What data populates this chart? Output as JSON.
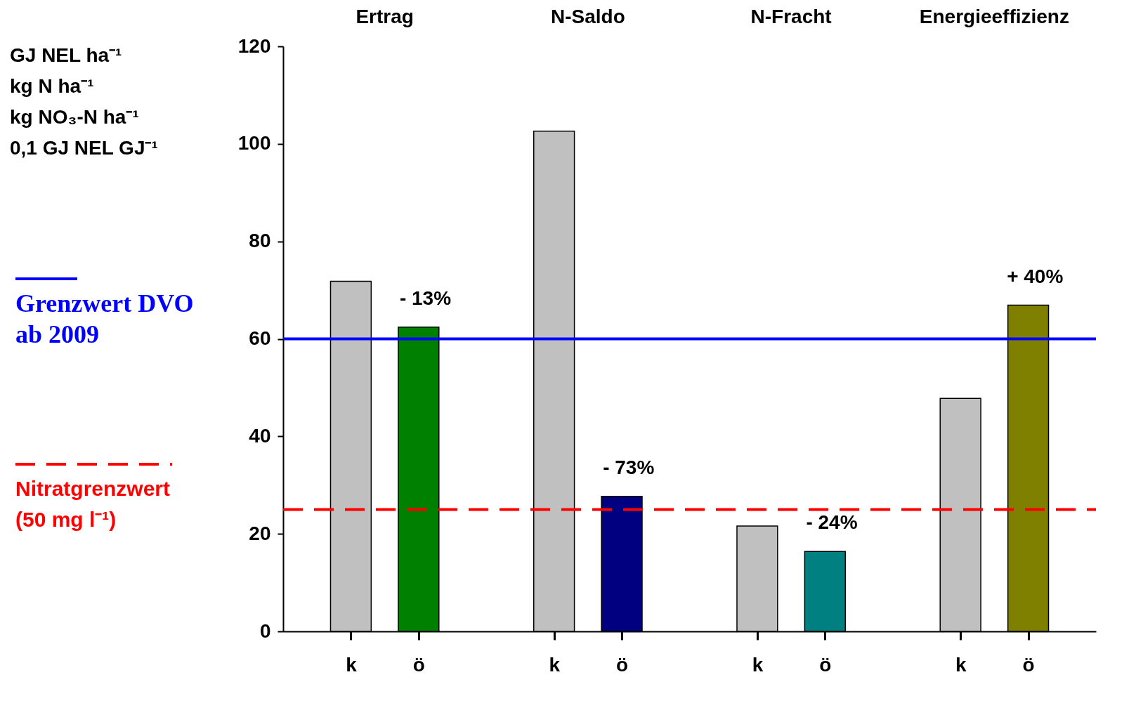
{
  "chart_data": {
    "type": "bar",
    "ylabel": "GJ NEL ha⁻¹\nkg N ha⁻¹\nkg NO₃-N ha⁻¹\n0,1 GJ NEL GJ⁻¹",
    "categories": [
      "k",
      "ö",
      "k",
      "ö",
      "k",
      "ö",
      "k",
      "ö"
    ],
    "values": [
      71.8,
      62.4,
      102.6,
      27.7,
      21.6,
      16.4,
      47.8,
      66.9
    ],
    "colors": [
      "#c0c0c0",
      "#008000",
      "#c0c0c0",
      "#000080",
      "#c0c0c0",
      "#008080",
      "#c0c0c0",
      "#808000"
    ],
    "ylim": [
      0,
      120
    ],
    "yticks": [
      0,
      20,
      40,
      60,
      80,
      100,
      120
    ],
    "grid": false,
    "ref_lines": [
      {
        "axis": "y",
        "value": 60,
        "label": "Grenzwert DVO\nab 2009",
        "color": "#0000ff",
        "line_style": "solid"
      },
      {
        "axis": "y",
        "value": 25,
        "label": "Nitratgrenzwert\n(50 mg l⁻¹)",
        "color": "#ff0000",
        "line_style": "dashed"
      }
    ],
    "annotations": [
      "Ertrag",
      "N-Saldo",
      "N-Fracht",
      "Energieeffizienz",
      "- 13%",
      "- 73%",
      "- 24%",
      "+ 40%"
    ]
  }
}
